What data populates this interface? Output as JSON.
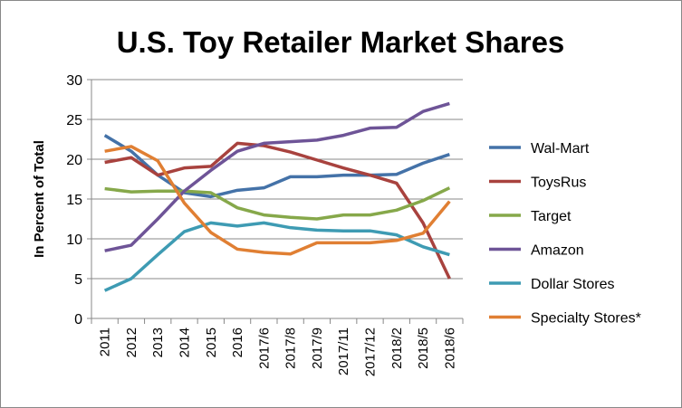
{
  "chart_data": {
    "type": "line",
    "title": "U.S. Toy Retailer Market Shares",
    "xlabel": "",
    "ylabel": "In Percent of Total",
    "ylim": [
      0,
      30
    ],
    "yticks": [
      0,
      5,
      10,
      15,
      20,
      25,
      30
    ],
    "grid": true,
    "legend": "right",
    "categories": [
      "2011",
      "2012",
      "2013",
      "2014",
      "2015",
      "2016",
      "2017/6",
      "2017/8",
      "2017/9",
      "2017/11",
      "2017/12",
      "2018/2",
      "2018/5",
      "2018/6"
    ],
    "series": [
      {
        "name": "Wal-Mart",
        "color": "#4472a8",
        "values": [
          23,
          21,
          18,
          15.8,
          15.3,
          16.1,
          16.4,
          17.8,
          17.8,
          18,
          18,
          18.1,
          19.5,
          20.6
        ]
      },
      {
        "name": "ToysRus",
        "color": "#a8423e",
        "values": [
          19.6,
          20.2,
          18,
          18.9,
          19.1,
          22,
          21.7,
          20.9,
          19.9,
          18.9,
          18,
          17,
          12,
          5
        ]
      },
      {
        "name": "Target",
        "color": "#86a84a",
        "values": [
          16.3,
          15.9,
          16,
          16,
          15.8,
          13.9,
          13,
          12.7,
          12.5,
          13,
          13,
          13.6,
          14.8,
          16.4
        ]
      },
      {
        "name": "Amazon",
        "color": "#6e5497",
        "values": [
          8.5,
          9.2,
          12.5,
          16,
          18.6,
          21,
          22,
          22.2,
          22.4,
          23,
          23.9,
          24,
          26,
          27
        ]
      },
      {
        "name": "Dollar Stores",
        "color": "#3e9bb3",
        "values": [
          3.5,
          5,
          8,
          10.9,
          12,
          11.6,
          12,
          11.4,
          11.1,
          11,
          11,
          10.5,
          9,
          8
        ]
      },
      {
        "name": "Specialty Stores*",
        "color": "#e07f33",
        "values": [
          21,
          21.6,
          19.8,
          14.5,
          10.8,
          8.7,
          8.3,
          8.1,
          9.5,
          9.5,
          9.5,
          9.8,
          10.7,
          14.7
        ]
      }
    ]
  }
}
